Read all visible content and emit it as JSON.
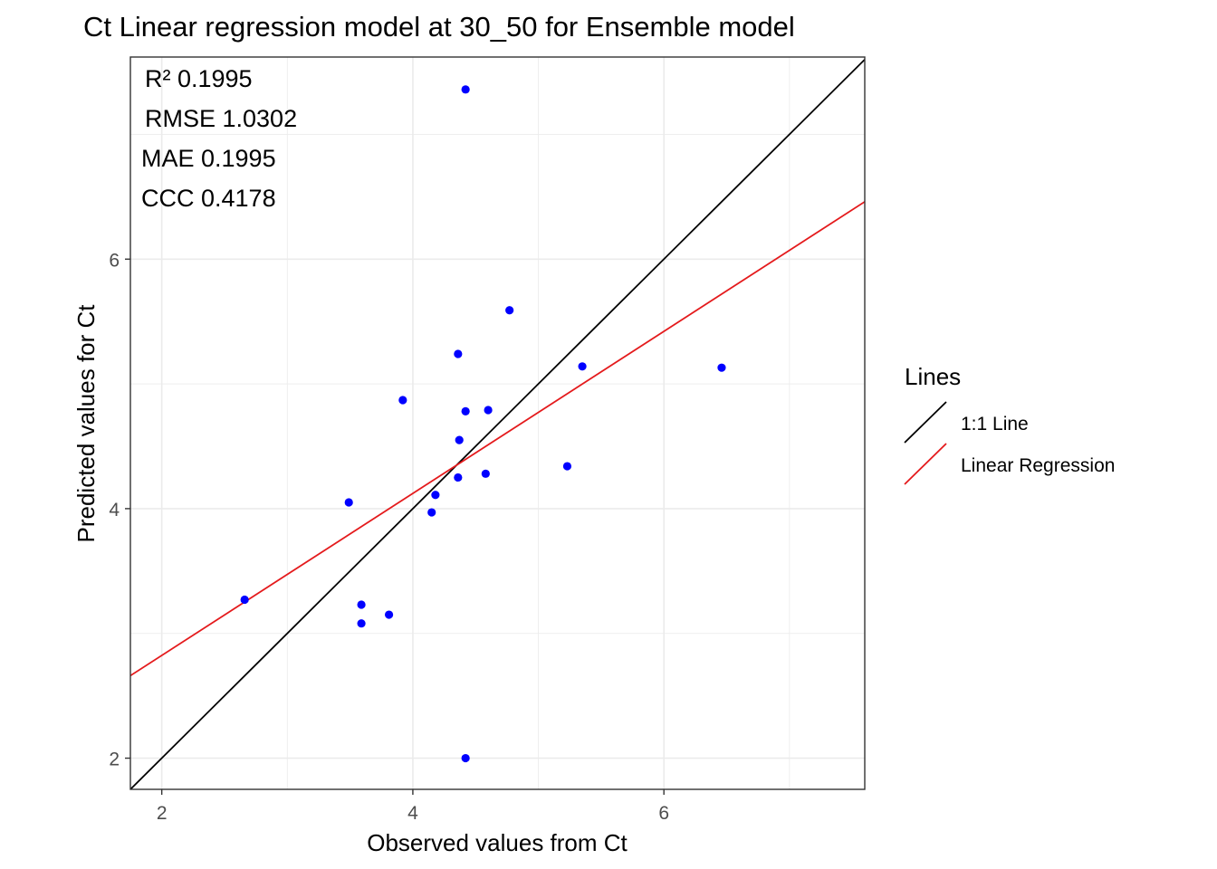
{
  "chart_data": {
    "type": "scatter",
    "title": "Ct  Linear regression model at  30_50  for  Ensemble  model",
    "xlabel": "Observed values from Ct",
    "ylabel": "Predicted values for Ct",
    "xlim": [
      1.75,
      7.6
    ],
    "ylim": [
      1.75,
      7.62
    ],
    "xticks": [
      2,
      4,
      6
    ],
    "yticks": [
      2,
      4,
      6
    ],
    "grid": true,
    "stats": [
      {
        "label": "R²",
        "value": "0.1995"
      },
      {
        "label": "RMSE",
        "value": "1.0302"
      },
      {
        "label": "MAE",
        "value": "0.1995"
      },
      {
        "label": "CCC",
        "value": "0.4178"
      }
    ],
    "points": [
      {
        "x": 4.42,
        "y": 7.36
      },
      {
        "x": 4.77,
        "y": 5.59
      },
      {
        "x": 4.36,
        "y": 5.24
      },
      {
        "x": 5.35,
        "y": 5.14
      },
      {
        "x": 6.46,
        "y": 5.13
      },
      {
        "x": 3.92,
        "y": 4.87
      },
      {
        "x": 4.42,
        "y": 4.78
      },
      {
        "x": 4.6,
        "y": 4.79
      },
      {
        "x": 4.37,
        "y": 4.55
      },
      {
        "x": 5.23,
        "y": 4.34
      },
      {
        "x": 4.58,
        "y": 4.28
      },
      {
        "x": 4.36,
        "y": 4.25
      },
      {
        "x": 4.18,
        "y": 4.11
      },
      {
        "x": 3.49,
        "y": 4.05
      },
      {
        "x": 4.15,
        "y": 3.97
      },
      {
        "x": 2.66,
        "y": 3.27
      },
      {
        "x": 3.59,
        "y": 3.23
      },
      {
        "x": 3.81,
        "y": 3.15
      },
      {
        "x": 3.59,
        "y": 3.08
      },
      {
        "x": 4.42,
        "y": 2.0
      }
    ],
    "point_color": "#0000ff",
    "lines": [
      {
        "name": "1:1 Line",
        "color": "#000000",
        "slope": 1.0,
        "intercept": 0.0
      },
      {
        "name": "Linear Regression",
        "color": "#e41a1c",
        "slope": 0.6494,
        "intercept": 1.5247
      }
    ],
    "legend": {
      "title": "Lines",
      "placement": "right",
      "items": [
        {
          "label": "1:1 Line",
          "color": "#000000"
        },
        {
          "label": "Linear Regression",
          "color": "#e41a1c"
        }
      ]
    }
  }
}
